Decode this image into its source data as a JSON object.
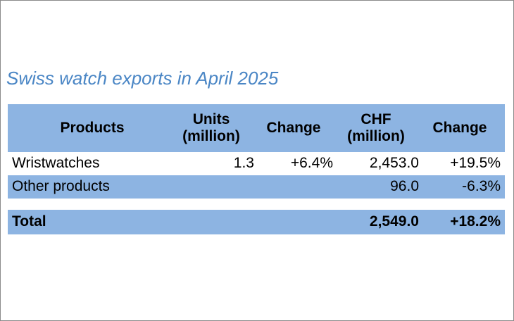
{
  "title": "Swiss watch exports in April 2025",
  "table": {
    "headers": {
      "products": "Products",
      "units_line1": "Units",
      "units_line2": "(million)",
      "change1": "Change",
      "chf_line1": "CHF",
      "chf_line2": "(million)",
      "change2": "Change"
    },
    "rows": [
      {
        "product": "Wristwatches",
        "units": "1.3",
        "units_change": "+6.4%",
        "chf": "2,453.0",
        "chf_change": "+19.5%"
      },
      {
        "product": "Other products",
        "units": "",
        "units_change": "",
        "chf": "96.0",
        "chf_change": "-6.3%"
      }
    ],
    "total": {
      "label": "Total",
      "chf": "2,549.0",
      "chf_change": "+18.2%"
    }
  },
  "colors": {
    "title": "#4a86c5",
    "band": "#8db4e2",
    "border": "#8a8a8a"
  }
}
